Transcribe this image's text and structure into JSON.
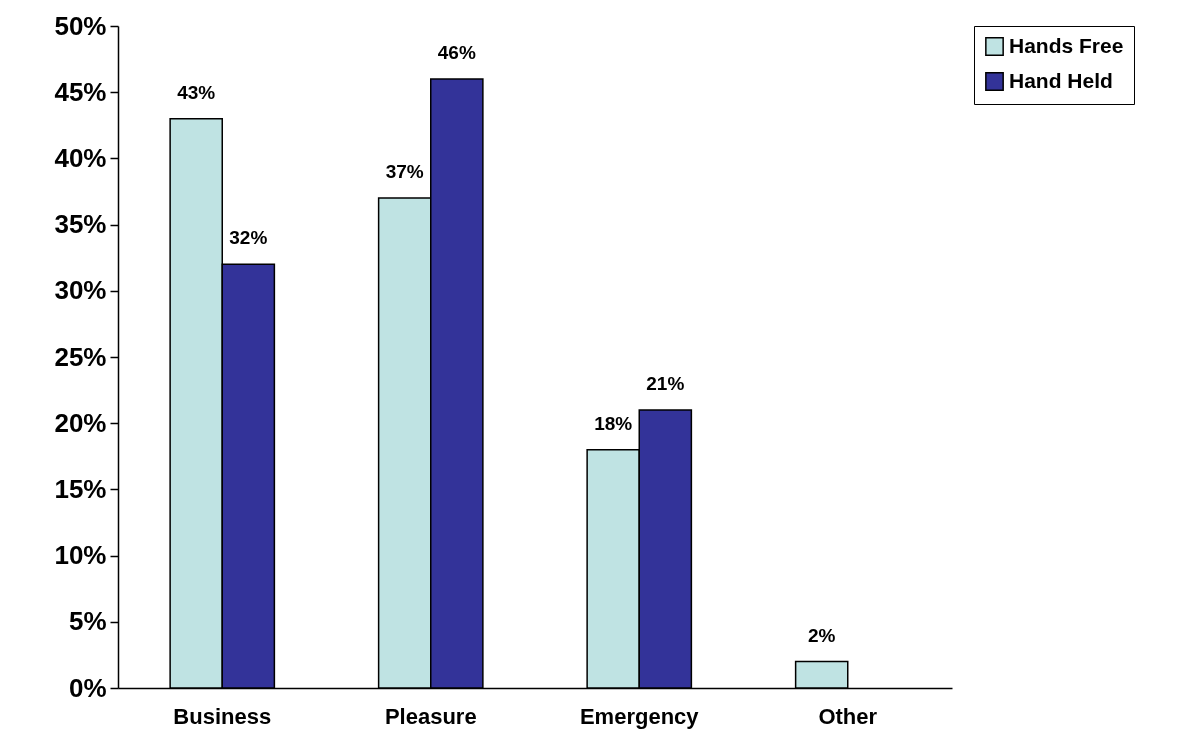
{
  "chart_data": {
    "type": "bar",
    "categories": [
      "Business",
      "Pleasure",
      "Emergency",
      "Other"
    ],
    "series": [
      {
        "name": "Hands Free",
        "color": "#bfe3e3",
        "values": [
          43,
          37,
          18,
          2
        ],
        "value_labels": [
          "43%",
          "37%",
          "18%",
          "2%"
        ]
      },
      {
        "name": "Hand Held",
        "color": "#333399",
        "values": [
          32,
          46,
          21,
          null
        ],
        "value_labels": [
          "32%",
          "46%",
          "21%",
          null
        ]
      }
    ],
    "ylim": [
      0,
      50
    ],
    "yticks": [
      {
        "value": 0,
        "label": "0%"
      },
      {
        "value": 5,
        "label": "5%"
      },
      {
        "value": 10,
        "label": "10%"
      },
      {
        "value": 15,
        "label": "15%"
      },
      {
        "value": 20,
        "label": "20%"
      },
      {
        "value": 25,
        "label": "25%"
      },
      {
        "value": 30,
        "label": "30%"
      },
      {
        "value": 35,
        "label": "35%"
      },
      {
        "value": 40,
        "label": "40%"
      },
      {
        "value": 45,
        "label": "45%"
      },
      {
        "value": 50,
        "label": "50%"
      }
    ],
    "legend": "right"
  }
}
